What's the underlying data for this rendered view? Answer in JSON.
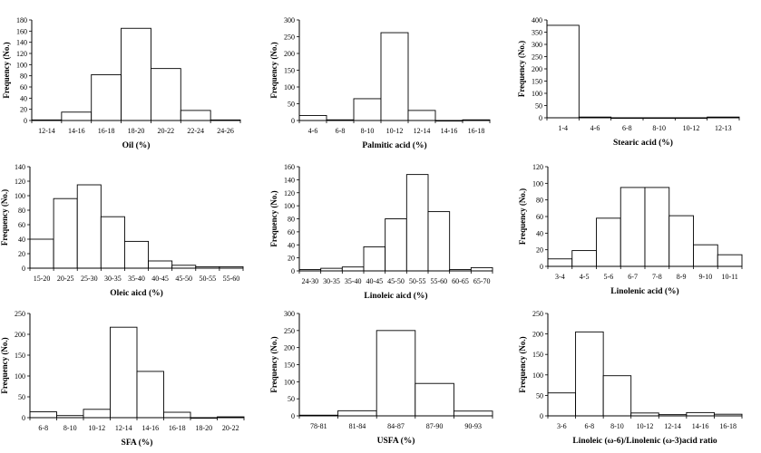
{
  "chart_data": [
    {
      "type": "bar",
      "xlabel": "Oil (%)",
      "ylabel": "Frequency (No.)",
      "ylim": [
        0,
        180
      ],
      "yticks": [
        0,
        20,
        40,
        60,
        80,
        100,
        120,
        140,
        160,
        180
      ],
      "categories": [
        "12-14",
        "14-16",
        "16-18",
        "18-20",
        "20-22",
        "22-24",
        "24-26"
      ],
      "values": [
        1,
        15,
        82,
        165,
        93,
        18,
        1
      ]
    },
    {
      "type": "bar",
      "xlabel": "Palmitic acid (%)",
      "ylabel": "Frequency (No.)",
      "ylim": [
        0,
        300
      ],
      "yticks": [
        0,
        50,
        100,
        150,
        200,
        250,
        300
      ],
      "categories": [
        "4-6",
        "6-8",
        "8-10",
        "10-12",
        "12-14",
        "14-16",
        "16-18"
      ],
      "values": [
        15,
        2,
        65,
        262,
        30,
        0,
        2
      ]
    },
    {
      "type": "bar",
      "xlabel": "Stearic acid (%)",
      "ylabel": "Frequency (No.)",
      "ylim": [
        0,
        400
      ],
      "yticks": [
        0,
        50,
        100,
        150,
        200,
        250,
        300,
        350,
        400
      ],
      "categories": [
        "1-4",
        "4-6",
        "6-8",
        "8-10",
        "10-12",
        "12-13"
      ],
      "values": [
        378,
        3,
        0,
        0,
        0,
        3
      ]
    },
    {
      "type": "bar",
      "xlabel": "Oleic aicd (%)",
      "ylabel": "Frequency (No.)",
      "ylim": [
        0,
        140
      ],
      "yticks": [
        0,
        20,
        40,
        60,
        80,
        100,
        120,
        140
      ],
      "categories": [
        "15-20",
        "20-25",
        "25-30",
        "30-35",
        "35-40",
        "40-45",
        "45-50",
        "50-55",
        "55-60"
      ],
      "values": [
        40,
        96,
        115,
        71,
        37,
        10,
        4,
        2,
        2
      ]
    },
    {
      "type": "bar",
      "xlabel": "Linoleic aicd (%)",
      "ylabel": "Frequency (No.)",
      "ylim": [
        0,
        160
      ],
      "yticks": [
        0,
        20,
        40,
        60,
        80,
        100,
        120,
        140,
        160
      ],
      "categories": [
        "24-30",
        "30-35",
        "35-40",
        "40-45",
        "45-50",
        "50-55",
        "55-60",
        "60-65",
        "65-70"
      ],
      "values": [
        2,
        4,
        6,
        37,
        80,
        148,
        91,
        2,
        5
      ]
    },
    {
      "type": "bar",
      "xlabel": "Linolenic acid (%)",
      "ylabel": "Frequency (No.)",
      "ylim": [
        0,
        120
      ],
      "yticks": [
        0,
        20,
        40,
        60,
        80,
        100,
        120
      ],
      "categories": [
        "3-4",
        "4-5",
        "5-6",
        "6-7",
        "7-8",
        "8-9",
        "9-10",
        "10-11"
      ],
      "values": [
        9,
        19,
        58,
        95,
        95,
        61,
        26,
        14
      ]
    },
    {
      "type": "bar",
      "xlabel": "SFA (%)",
      "ylabel": "Frequency (No.)",
      "ylim": [
        0,
        250
      ],
      "yticks": [
        0,
        50,
        100,
        150,
        200,
        250
      ],
      "categories": [
        "6-8",
        "8-10",
        "10-12",
        "12-14",
        "14-16",
        "16-18",
        "18-20",
        "20-22"
      ],
      "values": [
        14,
        5,
        20,
        217,
        111,
        13,
        0,
        2
      ]
    },
    {
      "type": "bar",
      "xlabel": "USFA (%)",
      "ylabel": "Frequency (No.)",
      "ylim": [
        0,
        300
      ],
      "yticks": [
        0,
        50,
        100,
        150,
        200,
        250,
        300
      ],
      "categories": [
        "78-81",
        "81-84",
        "84-87",
        "87-90",
        "90-93"
      ],
      "values": [
        2,
        15,
        250,
        95,
        14
      ]
    },
    {
      "type": "bar",
      "xlabel": "Linoleic (ω-6)/Linolenic (ω-3)acid ratio",
      "ylabel": "Frequency (No.)",
      "ylim": [
        0,
        250
      ],
      "yticks": [
        0,
        50,
        100,
        150,
        200,
        250
      ],
      "categories": [
        "3-6",
        "6-8",
        "8-10",
        "10-12",
        "12-14",
        "14-16",
        "16-18"
      ],
      "values": [
        56,
        205,
        98,
        7,
        3,
        8,
        4
      ]
    }
  ]
}
